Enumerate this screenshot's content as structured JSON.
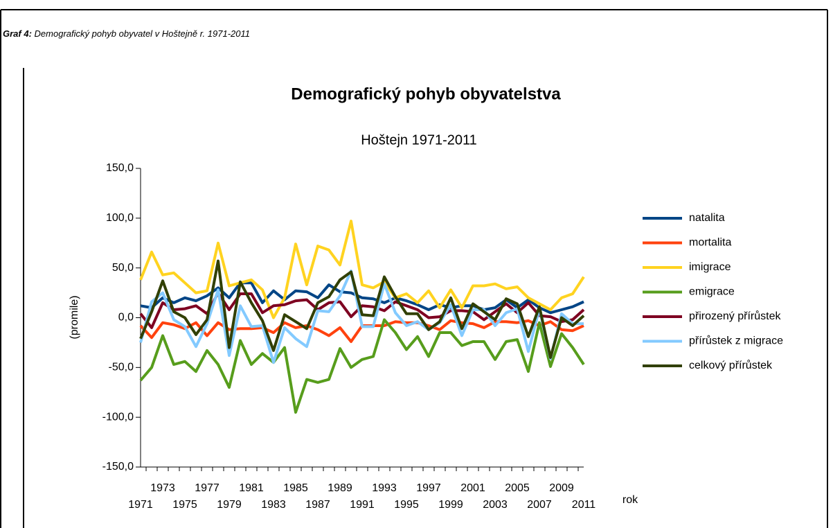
{
  "caption": {
    "label": "Graf 4:",
    "text": "Demografický pohyb obyvatel v Hoštejně r. 1971-2011"
  },
  "chart_data": {
    "type": "line",
    "title": "Demografický pohyb obyvatelstva",
    "subtitle": "Hoštejn 1971-2011",
    "y_label": "(promile)",
    "x_label": "rok",
    "categories": [
      "1971",
      null,
      "1973",
      null,
      "1975",
      null,
      "1977",
      null,
      "1979",
      null,
      "1981",
      null,
      "1983",
      null,
      "1985",
      null,
      "1987",
      null,
      "1989",
      null,
      "1991",
      null,
      "1993",
      null,
      "1995",
      null,
      "1997",
      null,
      "1999",
      null,
      "2001",
      null,
      "2003",
      null,
      "2005",
      null,
      "2007",
      null,
      "2009",
      null,
      "2011"
    ],
    "ylim": [
      -150,
      150
    ],
    "yticks": [
      {
        "value": -150,
        "label": "-150,0"
      },
      {
        "value": -100,
        "label": "-100,0"
      },
      {
        "value": -50,
        "label": "-50,0"
      },
      {
        "value": 0,
        "label": "0,0"
      },
      {
        "value": 50,
        "label": "50,0"
      },
      {
        "value": 100,
        "label": "100,0"
      },
      {
        "value": 150,
        "label": "150,0"
      }
    ],
    "grid": false,
    "legend": "right",
    "series": [
      {
        "name": "natalita",
        "color": "#004586",
        "values": [
          12,
          10,
          20,
          15,
          20,
          17,
          22,
          30,
          20,
          35,
          35,
          15,
          27,
          18,
          27,
          26,
          20,
          33,
          26,
          25,
          20,
          19,
          15,
          20,
          17,
          13,
          8,
          13,
          10,
          12,
          12,
          8,
          10,
          18,
          10,
          18,
          10,
          5,
          8,
          11,
          16
        ]
      },
      {
        "name": "mortalita",
        "color": "#ff420e",
        "values": [
          -8,
          -20,
          -5,
          -7,
          -11,
          -5,
          -18,
          -5,
          -12,
          -11,
          -11,
          -10,
          -15,
          -5,
          -10,
          -8,
          -12,
          -18,
          -10,
          -24,
          -8,
          -8,
          -8,
          -4,
          -5,
          -5,
          -8,
          -12,
          -3,
          -5,
          -6,
          -10,
          -4,
          -4,
          -5,
          -3,
          -8,
          -4,
          -12,
          -13,
          -8
        ]
      },
      {
        "name": "imigrace",
        "color": "#ffd320",
        "values": [
          38,
          66,
          43,
          45,
          35,
          25,
          27,
          75,
          32,
          35,
          38,
          28,
          0,
          20,
          74,
          33,
          72,
          68,
          53,
          97,
          33,
          30,
          36,
          20,
          24,
          15,
          27,
          10,
          28,
          10,
          32,
          32,
          34,
          29,
          31,
          20,
          14,
          8,
          20,
          24,
          41
        ]
      },
      {
        "name": "emigrace",
        "color": "#579d1c",
        "values": [
          -63,
          -50,
          -18,
          -47,
          -44,
          -54,
          -33,
          -47,
          -70,
          -23,
          -47,
          -36,
          -45,
          -30,
          -95,
          -62,
          -65,
          -62,
          -31,
          -50,
          -42,
          -39,
          -2,
          -15,
          -32,
          -19,
          -39,
          -15,
          -15,
          -28,
          -24,
          -24,
          -42,
          -24,
          -22,
          -54,
          -5,
          -49,
          -16,
          -30,
          -47
        ]
      },
      {
        "name": "přirozený přírůstek",
        "color": "#7e0021",
        "values": [
          4,
          -10,
          15,
          8,
          9,
          12,
          4,
          25,
          8,
          24,
          24,
          5,
          12,
          13,
          17,
          18,
          8,
          15,
          16,
          1,
          12,
          11,
          7,
          16,
          12,
          8,
          0,
          1,
          7,
          7,
          6,
          -2,
          6,
          14,
          5,
          15,
          2,
          1,
          -4,
          -2,
          8
        ]
      },
      {
        "name": "přírůstek z migrace",
        "color": "#83caff",
        "values": [
          -25,
          16,
          25,
          -2,
          -9,
          -29,
          -6,
          28,
          -38,
          12,
          -9,
          -8,
          -45,
          -10,
          -21,
          -29,
          7,
          6,
          22,
          47,
          -9,
          -9,
          34,
          5,
          -8,
          -4,
          -12,
          -5,
          13,
          -18,
          8,
          8,
          -8,
          5,
          9,
          -34,
          9,
          -41,
          4,
          -6,
          -6
        ]
      },
      {
        "name": "celkový přírůstek",
        "color": "#314004",
        "values": [
          -21,
          6,
          37,
          6,
          0,
          -17,
          -2,
          57,
          -30,
          36,
          15,
          -3,
          -33,
          3,
          -4,
          -11,
          15,
          21,
          38,
          46,
          3,
          2,
          41,
          21,
          4,
          4,
          -12,
          -4,
          20,
          -11,
          14,
          6,
          -2,
          19,
          14,
          -19,
          11,
          -40,
          0,
          -8,
          2
        ]
      }
    ]
  }
}
